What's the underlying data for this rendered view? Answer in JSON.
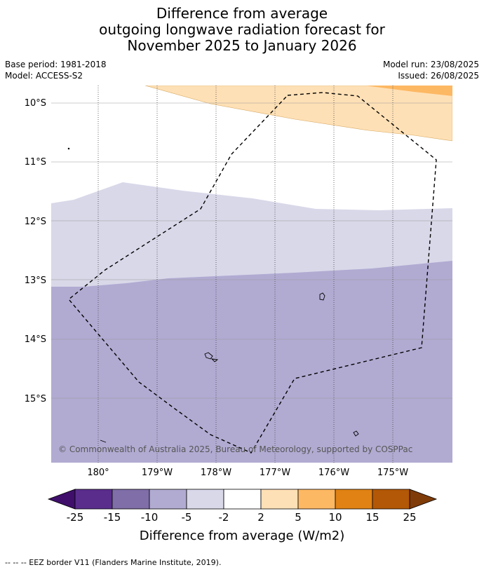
{
  "title": {
    "line1": "Difference from average",
    "line2": "outgoing longwave radiation forecast for",
    "line3": "November 2025 to January 2026"
  },
  "meta_left": {
    "base_period": "Base period: 1981-2018",
    "model": "Model: ACCESS-S2"
  },
  "meta_right": {
    "model_run": "Model run: 23/08/2025",
    "issued": "Issued: 26/08/2025"
  },
  "map": {
    "lat_labels": [
      "10°S",
      "11°S",
      "12°S",
      "13°S",
      "14°S",
      "15°S"
    ],
    "lon_labels": [
      "180°",
      "179°W",
      "178°W",
      "177°W",
      "176°W",
      "175°W"
    ],
    "copyright": "© Commonwealth of Australia 2025, Bureau of Meteorology, supported by COSPPac"
  },
  "colorbar": {
    "ticks": [
      "-25",
      "-15",
      "-10",
      "-5",
      "-2",
      "2",
      "5",
      "10",
      "15",
      "25"
    ],
    "colors": [
      "#3f0f6b",
      "#5a2d8c",
      "#7f6ea8",
      "#b1abd2",
      "#d8d8e9",
      "#ffffff",
      "#fee0b6",
      "#fdb863",
      "#e08214",
      "#b35806",
      "#7f3b08"
    ],
    "label": "Difference from average (W/m2)"
  },
  "legend": {
    "eez": "--  --  -- EEZ border V11 (Flanders Marine Institute, 2019)."
  }
}
